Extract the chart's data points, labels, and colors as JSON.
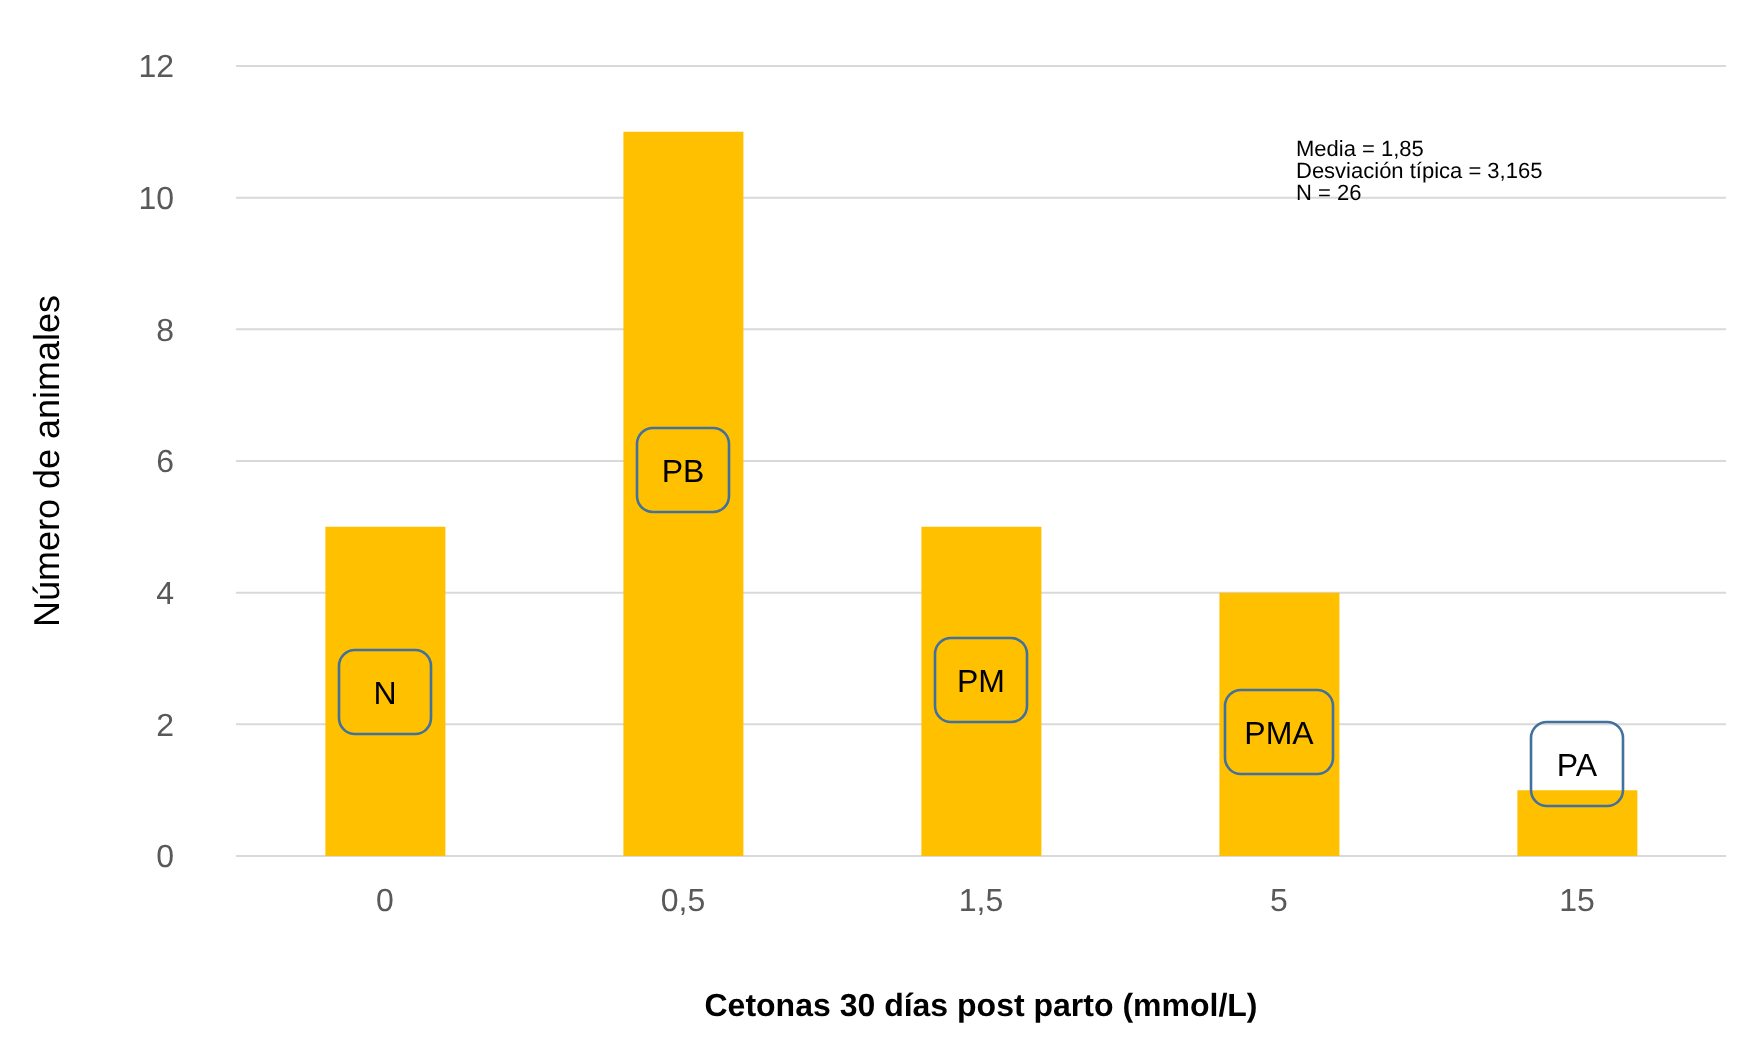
{
  "chart_data": {
    "type": "bar",
    "xlabel": "Cetonas 30 días post parto (mmol/L)",
    "ylabel": "Número de animales",
    "categories": [
      "0",
      "0,5",
      "1,5",
      "5",
      "15"
    ],
    "values": [
      5,
      11,
      5,
      4,
      1
    ],
    "color": "#ffc000",
    "ylim": [
      0,
      12
    ],
    "yticks": [
      0,
      2,
      4,
      6,
      8,
      10,
      12
    ],
    "grid": "y",
    "legend": false,
    "annotations": [
      "Media = 1,85",
      "Desviación típica = 3,165",
      "N = 26",
      "N",
      "PB",
      "PM",
      "PMA",
      "PA"
    ]
  }
}
